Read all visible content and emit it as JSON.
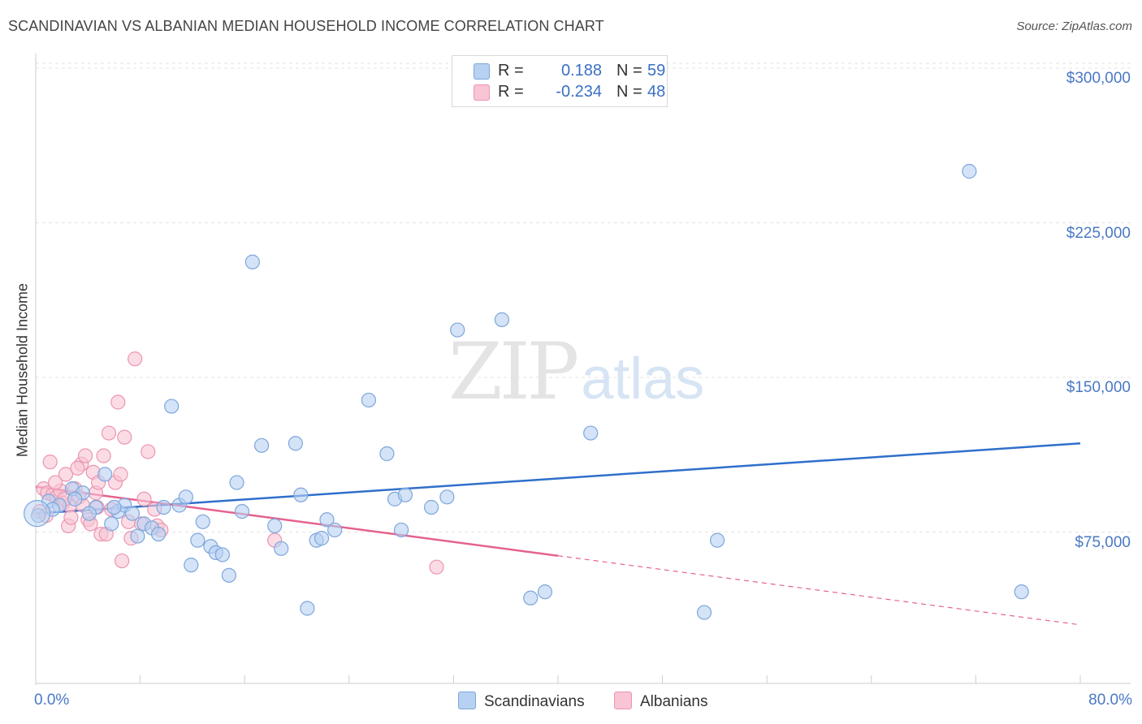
{
  "header": {
    "title": "SCANDINAVIAN VS ALBANIAN MEDIAN HOUSEHOLD INCOME CORRELATION CHART",
    "source": "Source: ZipAtlas.com"
  },
  "watermark": {
    "zip": "ZIP",
    "atlas": "atlas"
  },
  "legend": {
    "r_label": "R =",
    "n_label": "N =",
    "rows": [
      {
        "r": "0.188",
        "n": "59"
      },
      {
        "r": "-0.234",
        "n": "48"
      }
    ]
  },
  "colors": {
    "scandinavian_fill": "#b7d1f2",
    "scandinavian_stroke": "#7ea6dc",
    "scandinavian_line": "#2f6fcb",
    "albanian_fill": "#f9c4d4",
    "albanian_stroke": "#eb95b0",
    "albanian_line": "#e5628f",
    "grid": "#e3e3e3",
    "axis_text": "#4a78c4"
  },
  "chart_data": {
    "type": "scatter",
    "title": "SCANDINAVIAN VS ALBANIAN MEDIAN HOUSEHOLD INCOME CORRELATION CHART",
    "xlabel": "",
    "ylabel": "Median Household Income",
    "xlim": [
      0,
      80
    ],
    "ylim": [
      0,
      310000
    ],
    "x_tick_labels": [
      "0.0%",
      "80.0%"
    ],
    "y_ticks": [
      {
        "value": 75000,
        "label": "$75,000"
      },
      {
        "value": 150000,
        "label": "$150,000"
      },
      {
        "value": 225000,
        "label": "$225,000"
      },
      {
        "value": 300000,
        "label": "$300,000"
      }
    ],
    "grid": true,
    "legend_position": "top-center",
    "series": [
      {
        "name": "Scandinavians",
        "r": 0.188,
        "n": 59,
        "trend": {
          "x0": 0,
          "y0": 84000,
          "x1": 80,
          "y1": 118000,
          "dashed_from": null
        },
        "points": [
          [
            0.2,
            83000
          ],
          [
            1.0,
            90000
          ],
          [
            1.8,
            88000
          ],
          [
            2.8,
            96000
          ],
          [
            3.6,
            94000
          ],
          [
            4.6,
            87000
          ],
          [
            5.3,
            103000
          ],
          [
            5.8,
            79000
          ],
          [
            6.3,
            85000
          ],
          [
            6.8,
            88000
          ],
          [
            7.4,
            84000
          ],
          [
            7.8,
            73000
          ],
          [
            8.3,
            79000
          ],
          [
            8.9,
            77000
          ],
          [
            9.4,
            74000
          ],
          [
            9.8,
            87000
          ],
          [
            10.4,
            136000
          ],
          [
            11.0,
            88000
          ],
          [
            11.5,
            92000
          ],
          [
            11.9,
            59000
          ],
          [
            12.4,
            71000
          ],
          [
            12.8,
            80000
          ],
          [
            13.4,
            68000
          ],
          [
            13.8,
            65000
          ],
          [
            14.3,
            64000
          ],
          [
            14.8,
            54000
          ],
          [
            15.4,
            99000
          ],
          [
            15.8,
            85000
          ],
          [
            16.6,
            206000
          ],
          [
            17.3,
            117000
          ],
          [
            18.3,
            78000
          ],
          [
            18.8,
            67000
          ],
          [
            19.9,
            118000
          ],
          [
            20.3,
            93000
          ],
          [
            20.8,
            38000
          ],
          [
            21.5,
            71000
          ],
          [
            21.9,
            72000
          ],
          [
            22.3,
            81000
          ],
          [
            22.9,
            76000
          ],
          [
            25.5,
            139000
          ],
          [
            26.9,
            113000
          ],
          [
            27.5,
            91000
          ],
          [
            28.0,
            76000
          ],
          [
            28.3,
            93000
          ],
          [
            30.3,
            87000
          ],
          [
            31.5,
            92000
          ],
          [
            32.3,
            173000
          ],
          [
            35.7,
            178000
          ],
          [
            37.9,
            43000
          ],
          [
            39.0,
            46000
          ],
          [
            42.5,
            123000
          ],
          [
            51.2,
            36000
          ],
          [
            52.2,
            71000
          ],
          [
            71.5,
            250000
          ],
          [
            75.5,
            46000
          ],
          [
            1.3,
            86000
          ],
          [
            3.0,
            91000
          ],
          [
            4.1,
            84000
          ],
          [
            6.0,
            87000
          ]
        ]
      },
      {
        "name": "Albanians",
        "r": -0.234,
        "n": 48,
        "trend": {
          "x0": 0,
          "y0": 97000,
          "x1": 80,
          "y1": 30000,
          "dashed_from": 40
        },
        "points": [
          [
            0.3,
            85000
          ],
          [
            0.6,
            96000
          ],
          [
            0.9,
            94000
          ],
          [
            1.1,
            109000
          ],
          [
            1.3,
            93000
          ],
          [
            1.6,
            92000
          ],
          [
            1.9,
            95000
          ],
          [
            2.1,
            89000
          ],
          [
            2.3,
            103000
          ],
          [
            2.5,
            78000
          ],
          [
            2.6,
            88000
          ],
          [
            2.7,
            82000
          ],
          [
            3.0,
            96000
          ],
          [
            3.3,
            92000
          ],
          [
            3.5,
            108000
          ],
          [
            3.6,
            88000
          ],
          [
            3.8,
            112000
          ],
          [
            4.0,
            81000
          ],
          [
            4.2,
            79000
          ],
          [
            4.4,
            104000
          ],
          [
            4.6,
            94000
          ],
          [
            4.8,
            99000
          ],
          [
            5.0,
            74000
          ],
          [
            5.2,
            112000
          ],
          [
            5.4,
            74000
          ],
          [
            5.6,
            123000
          ],
          [
            5.8,
            86000
          ],
          [
            6.1,
            99000
          ],
          [
            6.3,
            138000
          ],
          [
            6.5,
            103000
          ],
          [
            6.8,
            121000
          ],
          [
            7.1,
            80000
          ],
          [
            7.3,
            72000
          ],
          [
            7.6,
            159000
          ],
          [
            8.1,
            79000
          ],
          [
            8.3,
            91000
          ],
          [
            8.6,
            114000
          ],
          [
            9.1,
            86000
          ],
          [
            9.3,
            78000
          ],
          [
            9.6,
            76000
          ],
          [
            18.3,
            71000
          ],
          [
            30.7,
            58000
          ],
          [
            0.8,
            83000
          ],
          [
            1.5,
            99000
          ],
          [
            2.2,
            91000
          ],
          [
            3.2,
            106000
          ],
          [
            4.7,
            87000
          ],
          [
            6.6,
            61000
          ]
        ]
      }
    ]
  }
}
